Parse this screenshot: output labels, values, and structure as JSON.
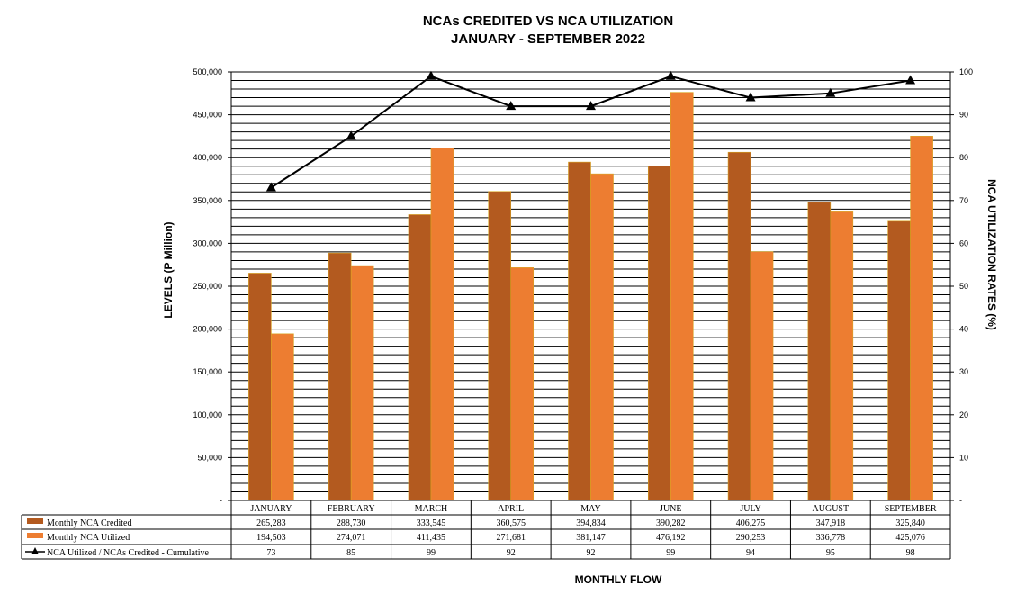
{
  "chart_data": {
    "type": "bar",
    "title": "NCAs CREDITED VS NCA UTILIZATION",
    "subtitle": "JANUARY - SEPTEMBER 2022",
    "xlabel": "MONTHLY FLOW",
    "ylabel": "LEVELS (P Million)",
    "y2label": "NCA UTILIZATION RATES (%)",
    "ylim": [
      0,
      500000
    ],
    "y2lim": [
      0,
      100
    ],
    "grid": true,
    "categories": [
      "JANUARY",
      "FEBRUARY",
      "MARCH",
      "APRIL",
      "MAY",
      "JUNE",
      "JULY",
      "AUGUST",
      "SEPTEMBER"
    ],
    "yticks": [
      "-",
      "50,000",
      "100,000",
      "150,000",
      "200,000",
      "250,000",
      "300,000",
      "350,000",
      "400,000",
      "450,000",
      "500,000"
    ],
    "y2ticks": [
      "-",
      "10",
      "20",
      "30",
      "40",
      "50",
      "60",
      "70",
      "80",
      "90",
      "100"
    ],
    "series": [
      {
        "name": "Monthly NCA Credited",
        "kind": "bar",
        "color": "#B35A1F",
        "values": [
          265283,
          288730,
          333545,
          360575,
          394834,
          390282,
          406275,
          347918,
          325840
        ],
        "labels": [
          "265,283",
          "288,730",
          "333,545",
          "360,575",
          "394,834",
          "390,282",
          "406,275",
          "347,918",
          "325,840"
        ]
      },
      {
        "name": "Monthly NCA Utilized",
        "kind": "bar",
        "color": "#ED7D31",
        "values": [
          194503,
          274071,
          411435,
          271681,
          381147,
          476192,
          290253,
          336778,
          425076
        ],
        "labels": [
          "194,503",
          "274,071",
          "411,435",
          "271,681",
          "381,147",
          "476,192",
          "290,253",
          "336,778",
          "425,076"
        ]
      },
      {
        "name": "NCA Utilized / NCAs Credited - Cumulative",
        "kind": "line",
        "axis": "secondary",
        "color": "#000000",
        "values": [
          73,
          85,
          99,
          92,
          92,
          99,
          94,
          95,
          98
        ],
        "labels": [
          "73",
          "85",
          "99",
          "92",
          "92",
          "99",
          "94",
          "95",
          "98"
        ]
      }
    ]
  }
}
